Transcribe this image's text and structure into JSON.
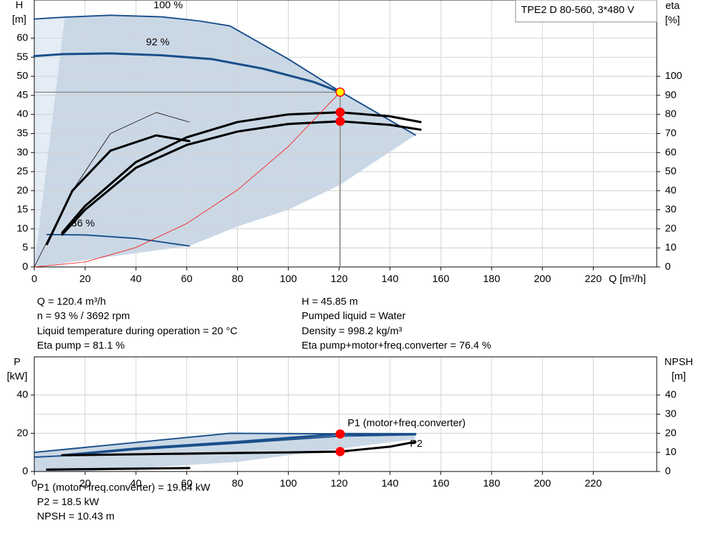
{
  "chart_data": [
    {
      "type": "line",
      "title": "TPE2 D 80-560, 3*480 V",
      "xlabel": "Q [m³/h]",
      "ylabel": "H",
      "yunit": "[m]",
      "y2label": "eta",
      "y2unit": "[%]",
      "xlim": [
        0,
        245
      ],
      "xticks": [
        0,
        20,
        40,
        60,
        80,
        100,
        120,
        140,
        160,
        180,
        200,
        220
      ],
      "ylim": [
        0,
        70
      ],
      "yticks": [
        0,
        5,
        10,
        15,
        20,
        25,
        30,
        35,
        40,
        45,
        50,
        55,
        60
      ],
      "y2lim": [
        0,
        140
      ],
      "y2ticks": [
        0,
        10,
        20,
        30,
        40,
        50,
        60,
        70,
        80,
        90,
        100
      ],
      "grid": true,
      "crosshair": true,
      "areas": [
        {
          "color": "#e4edf6",
          "x": [
            0,
            0,
            12,
            12
          ],
          "values": [
            0,
            65,
            65.5,
            0
          ]
        },
        {
          "color": "#cad8e6",
          "x": [
            0,
            12,
            30,
            50,
            65,
            77,
            100,
            120.4,
            150,
            120,
            100,
            80,
            61,
            0
          ],
          "values": [
            0,
            65.5,
            66,
            65.6,
            64.5,
            63.2,
            54.5,
            46,
            34.6,
            21.4,
            15,
            10.6,
            5.5,
            0
          ]
        }
      ],
      "series": [
        {
          "name": "100 %",
          "color": "#1a4f8b",
          "weight": "normal",
          "x": [
            0,
            12,
            30,
            50,
            65,
            77,
            100,
            120.4,
            150
          ],
          "values": [
            65,
            65.5,
            66,
            65.6,
            64.5,
            63.2,
            54.5,
            46,
            34.6
          ]
        },
        {
          "name": "92 %",
          "color": "#1a4f8b",
          "weight": "bold",
          "x": [
            0,
            11,
            30,
            50,
            70,
            90,
            110,
            120.4
          ],
          "values": [
            55.3,
            55.8,
            56,
            55.5,
            54.5,
            52,
            48.5,
            45.85
          ]
        },
        {
          "name": "36 %",
          "color": "#1a4f8b",
          "weight": "normal",
          "x": [
            5,
            20,
            40,
            61
          ],
          "values": [
            8.5,
            8.4,
            7.5,
            5.5
          ]
        },
        {
          "color": "#000000",
          "weight": "bold",
          "axis": "y2",
          "x": [
            11,
            20,
            40,
            60,
            80,
            100,
            120.4,
            140,
            152
          ],
          "values": [
            18,
            32,
            55,
            68,
            76,
            80,
            81.1,
            79,
            76
          ]
        },
        {
          "color": "#000000",
          "weight": "bold",
          "axis": "y2",
          "x": [
            11,
            20,
            40,
            60,
            80,
            100,
            120.4,
            140,
            152
          ],
          "values": [
            17,
            30,
            52,
            64,
            71,
            75,
            76.4,
            74.5,
            72
          ]
        },
        {
          "color": "#000000",
          "weight": "bold",
          "axis": "y2",
          "x": [
            5,
            15,
            30,
            48,
            61
          ],
          "values": [
            12,
            40,
            61,
            69,
            66
          ]
        },
        {
          "color": "#000000",
          "weight": "thin",
          "axis": "y2",
          "x": [
            0,
            15,
            30,
            48,
            61
          ],
          "values": [
            0,
            40,
            70,
            81,
            76
          ]
        },
        {
          "color": "#ff0000",
          "weight": "thin",
          "x": [
            0,
            20,
            40,
            60,
            80,
            100,
            120.4
          ],
          "values": [
            0,
            1.3,
            5.1,
            11.4,
            20.2,
            31.6,
            45.85
          ]
        }
      ],
      "points": [
        {
          "color": "#ffff00",
          "x": 120.4,
          "y": 45.85
        },
        {
          "color": "#ff0000",
          "axis": "y2",
          "x": 120.4,
          "y": 81.1
        },
        {
          "color": "#ff0000",
          "axis": "y2",
          "x": 120.4,
          "y": 76.4
        }
      ],
      "notes": [
        "Q = 120.4 m³/h",
        "n = 93 % / 3692 rpm",
        "Liquid temperature during operation = 20 °C",
        "Eta pump = 81.1 %",
        "H = 45.85 m",
        "Pumped liquid = Water",
        "Density = 998.2 kg/m³",
        "Eta pump+motor+freq.converter = 76.4 %"
      ]
    },
    {
      "type": "line",
      "ylabel": "P",
      "yunit": "[kW]",
      "y2label": "NPSH",
      "y2unit": "[m]",
      "xlim": [
        0,
        245
      ],
      "xticks": [
        0,
        20,
        40,
        60,
        80,
        100,
        120,
        140,
        160,
        180,
        200,
        220
      ],
      "ylim": [
        0,
        60
      ],
      "yticks": [
        0,
        20,
        40
      ],
      "y2lim": [
        0,
        60
      ],
      "y2ticks": [
        0,
        10,
        20,
        30,
        40
      ],
      "grid": true,
      "crosshair": false,
      "areas": [
        {
          "color": "#cad8e6",
          "x": [
            0,
            77,
            150,
            150,
            80,
            20,
            0
          ],
          "values": [
            10,
            20,
            19.6,
            17,
            5,
            0,
            0
          ]
        }
      ],
      "series": [
        {
          "name": "P1 (motor+freq.converter)",
          "color": "#1a4f8b",
          "weight": "bold",
          "x": [
            11,
            40,
            80,
            120.4,
            150
          ],
          "values": [
            8.5,
            12,
            15.5,
            19.64,
            19.6
          ]
        },
        {
          "name": "P2",
          "color": "#1a4f8b",
          "weight": "normal",
          "x": [
            0,
            11,
            40,
            80,
            120.4,
            150
          ],
          "values": [
            7.5,
            8.2,
            11.5,
            14.8,
            18.5,
            19.2
          ]
        },
        {
          "color": "#000000",
          "weight": "bold",
          "axis": "y2",
          "x": [
            11,
            40,
            80,
            100,
            120.4,
            140,
            150
          ],
          "values": [
            8.5,
            9,
            9.7,
            10,
            10.43,
            13,
            15.5
          ]
        },
        {
          "color": "#1a4f8b",
          "weight": "normal",
          "x": [
            0,
            77,
            120,
            150
          ],
          "values": [
            10,
            20,
            19.7,
            19.6
          ]
        },
        {
          "color": "#000000",
          "weight": "bold",
          "x": [
            5,
            61
          ],
          "values": [
            1,
            1.8
          ]
        }
      ],
      "points": [
        {
          "color": "#ff0000",
          "x": 120.4,
          "y": 19.64
        },
        {
          "color": "#ff0000",
          "axis": "y2",
          "x": 120.4,
          "y": 10.43
        }
      ],
      "notes": [
        "P1 (motor+freq.converter) = 19.64 kW",
        "P2 = 18.5 kW",
        "NPSH = 10.43 m"
      ]
    }
  ]
}
